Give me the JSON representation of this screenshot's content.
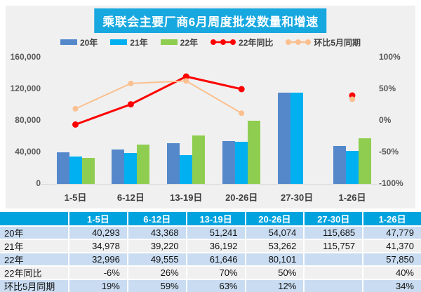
{
  "title": "乘联会主要厂商6月周度批发数量和增速",
  "colors": {
    "panel_bg": "#f0f0f0",
    "title_bg": "#18a8e0",
    "table_header_bg": "#00a3de",
    "table_row_blue": "#c9dcf1",
    "table_row_gray": "#f0f0f0",
    "bar_2020": "#5588cb",
    "bar_2021": "#00b0f0",
    "bar_2022": "#8fcd50",
    "line_yoy": "#ff0000",
    "line_mom": "#fac090"
  },
  "chart_data": {
    "type": "bar+line",
    "title": "乘联会主要厂商6月周度批发数量和增速",
    "categories": [
      "1-5日",
      "6-12日",
      "13-19日",
      "20-26日",
      "27-30日",
      "1-26日"
    ],
    "bar_series": [
      {
        "name": "20年",
        "color": "#5588cb",
        "values": [
          40293,
          43368,
          51241,
          54074,
          115685,
          47779
        ]
      },
      {
        "name": "21年",
        "color": "#00b0f0",
        "values": [
          34978,
          39220,
          36192,
          53262,
          115757,
          41370
        ]
      },
      {
        "name": "22年",
        "color": "#8fcd50",
        "values": [
          32996,
          49555,
          61646,
          80101,
          null,
          57850
        ]
      }
    ],
    "line_series": [
      {
        "name": "22年同比",
        "color": "#ff0000",
        "values_pct": [
          -6,
          26,
          70,
          50,
          null,
          40
        ]
      },
      {
        "name": "环比5月同期",
        "color": "#fac090",
        "values_pct": [
          19,
          59,
          63,
          12,
          null,
          34
        ]
      }
    ],
    "left_axis": {
      "min": 0,
      "max": 160000,
      "tick_labels": [
        "0",
        "40,000",
        "80,000",
        "120,000",
        "160,000"
      ]
    },
    "right_axis": {
      "min": -100,
      "max": 100,
      "tick_labels": [
        "-100%",
        "-50%",
        "0%",
        "50%",
        "100%"
      ]
    },
    "grid": false,
    "legend_position": "top"
  },
  "table": {
    "header": [
      "",
      "1-5日",
      "6-12日",
      "13-19日",
      "20-26日",
      "27-30日",
      "1-26日"
    ],
    "rows": [
      {
        "label": "20年",
        "cells": [
          "40,293",
          "43,368",
          "51,241",
          "54,074",
          "115,685",
          "47,779"
        ]
      },
      {
        "label": "21年",
        "cells": [
          "34,978",
          "39,220",
          "36,192",
          "53,262",
          "115,757",
          "41,370"
        ]
      },
      {
        "label": "22年",
        "cells": [
          "32,996",
          "49,555",
          "61,646",
          "80,101",
          "",
          "57,850"
        ]
      },
      {
        "label": "22年同比",
        "cells": [
          "-6%",
          "26%",
          "70%",
          "50%",
          "",
          "40%"
        ]
      },
      {
        "label": "环比5月同期",
        "cells": [
          "19%",
          "59%",
          "63%",
          "12%",
          "",
          "34%"
        ]
      }
    ]
  }
}
